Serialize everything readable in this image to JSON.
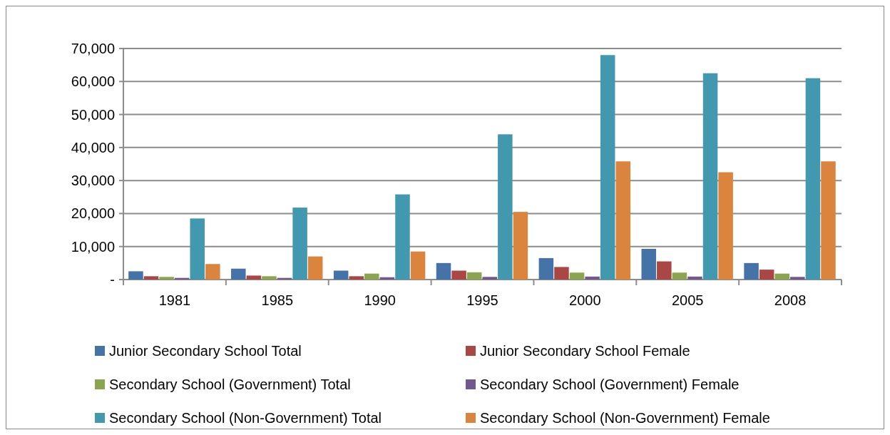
{
  "chart_data": {
    "type": "bar",
    "categories": [
      "1981",
      "1985",
      "1990",
      "1995",
      "2000",
      "2005",
      "2008"
    ],
    "series": [
      {
        "name": "Junior Secondary School Total",
        "color": "#4572a7",
        "values": [
          2500,
          3300,
          2700,
          5000,
          6500,
          9300,
          5000
        ]
      },
      {
        "name": "Junior Secondary School Female",
        "color": "#aa4643",
        "values": [
          1000,
          1200,
          1000,
          2700,
          3800,
          5500,
          3000
        ]
      },
      {
        "name": "Secondary School (Government) Total",
        "color": "#89a54e",
        "values": [
          800,
          1000,
          1800,
          2200,
          2100,
          2100,
          1800
        ]
      },
      {
        "name": "Secondary School (Government) Female",
        "color": "#71588f",
        "values": [
          500,
          500,
          700,
          800,
          900,
          900,
          800
        ]
      },
      {
        "name": "Secondary School (Non-Government) Total",
        "color": "#4198af",
        "values": [
          18500,
          21800,
          25800,
          44000,
          68000,
          62500,
          61000
        ]
      },
      {
        "name": "Secondary School (Non-Government) Female",
        "color": "#db843d",
        "values": [
          4700,
          7000,
          8500,
          20500,
          35800,
          32500,
          35800
        ]
      }
    ],
    "ylim": [
      0,
      70000
    ],
    "yticks": [
      {
        "value": 0,
        "label": "-"
      },
      {
        "value": 10000,
        "label": "10,000"
      },
      {
        "value": 20000,
        "label": "20,000"
      },
      {
        "value": 30000,
        "label": "30,000"
      },
      {
        "value": 40000,
        "label": "40,000"
      },
      {
        "value": 50000,
        "label": "50,000"
      },
      {
        "value": 60000,
        "label": "60,000"
      },
      {
        "value": 70000,
        "label": "70,000"
      }
    ],
    "grid": "y",
    "legend": "bottom"
  }
}
